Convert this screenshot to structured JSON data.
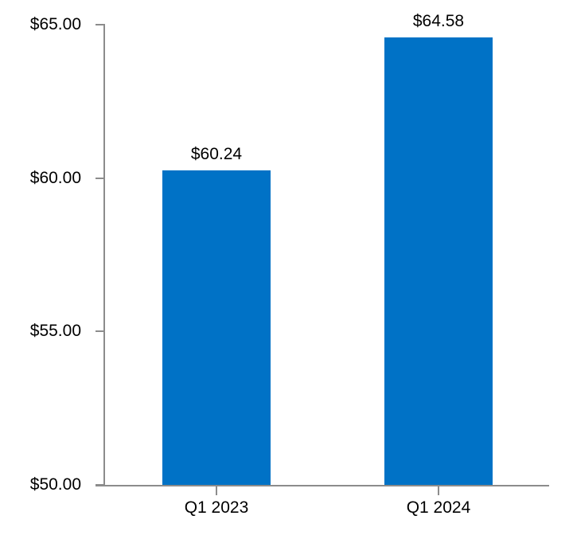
{
  "chart_data": {
    "type": "bar",
    "title": "",
    "categories": [
      "Q1 2023",
      "Q1 2024"
    ],
    "values": [
      60.24,
      64.58
    ],
    "data_labels": [
      "$60.24",
      "$64.58"
    ],
    "series_name": "",
    "xlabel": "",
    "ylabel": "",
    "ylim": [
      50,
      65
    ],
    "y_ticks": [
      {
        "value": 65,
        "label": "$65.00"
      },
      {
        "value": 60,
        "label": "$60.00"
      },
      {
        "value": 55,
        "label": "$55.00"
      },
      {
        "value": 50,
        "label": "$50.00"
      }
    ],
    "grid": false,
    "legend": false,
    "colors": {
      "bar": "#0072C6",
      "axis": "#8c8c8c",
      "text": "#000000",
      "background": "#ffffff"
    }
  }
}
